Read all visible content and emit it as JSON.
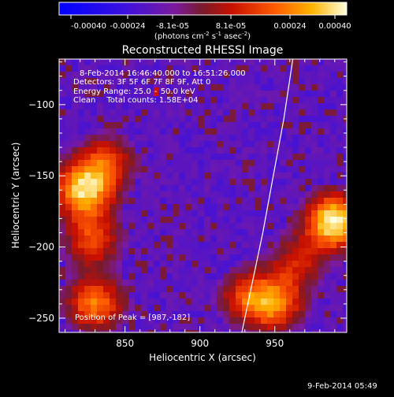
{
  "colorbar": {
    "ticks": [
      "-0.00040",
      "-0.00024",
      "-8.1e-05",
      "8.1e-05",
      "0.00024",
      "0.00040"
    ],
    "unit_text": "(photons cm",
    "unit_exp1": "-2",
    "unit_mid": " s",
    "unit_exp2": "-1",
    "unit_tail": " asec",
    "unit_exp3": "-2",
    "unit_close": ")",
    "range": [
      -0.0004,
      0.0004
    ]
  },
  "chart_data": {
    "type": "heatmap",
    "title": "Reconstructed RHESSI Image",
    "xlabel": "Heliocentric X (arcsec)",
    "ylabel": "Heliocentric Y (arcsec)",
    "xlim": [
      806,
      998
    ],
    "ylim": [
      -260,
      -68
    ],
    "xticks": [
      850,
      900,
      950
    ],
    "yticks": [
      -100,
      -150,
      -200,
      -250
    ],
    "peak": [
      987,
      -182
    ],
    "limb_curve": [
      [
        962,
        -68
      ],
      [
        956,
        -110
      ],
      [
        949,
        -150
      ],
      [
        942,
        -190
      ],
      [
        935,
        -225
      ],
      [
        928,
        -260
      ]
    ],
    "sources": [
      {
        "x": 990,
        "y": -182,
        "strength": 1.0
      },
      {
        "x": 822,
        "y": -160,
        "strength": 0.85
      },
      {
        "x": 838,
        "y": -140,
        "strength": 0.5
      },
      {
        "x": 828,
        "y": -195,
        "strength": 0.55
      },
      {
        "x": 830,
        "y": -240,
        "strength": 0.7
      },
      {
        "x": 950,
        "y": -240,
        "strength": 0.65
      },
      {
        "x": 930,
        "y": -235,
        "strength": 0.45
      },
      {
        "x": 965,
        "y": -210,
        "strength": 0.4
      }
    ]
  },
  "annotations": {
    "time_range": "8-Feb-2014 16:46:40.000 to 16:51:26.000",
    "detectors": "Detectors: 3F 5F 6F 7F 8F 9F, Att 0",
    "energy_prefix": "Energy Range: 25.0",
    "energy_dash": "-",
    "energy_suffix": "50.0 keV",
    "clean": "Clean",
    "total_counts": "Total counts: 1.58E+04",
    "peak_label": "Position of Peak = [987,-182]"
  },
  "footer": {
    "date": "9-Feb-2014 05:49"
  }
}
